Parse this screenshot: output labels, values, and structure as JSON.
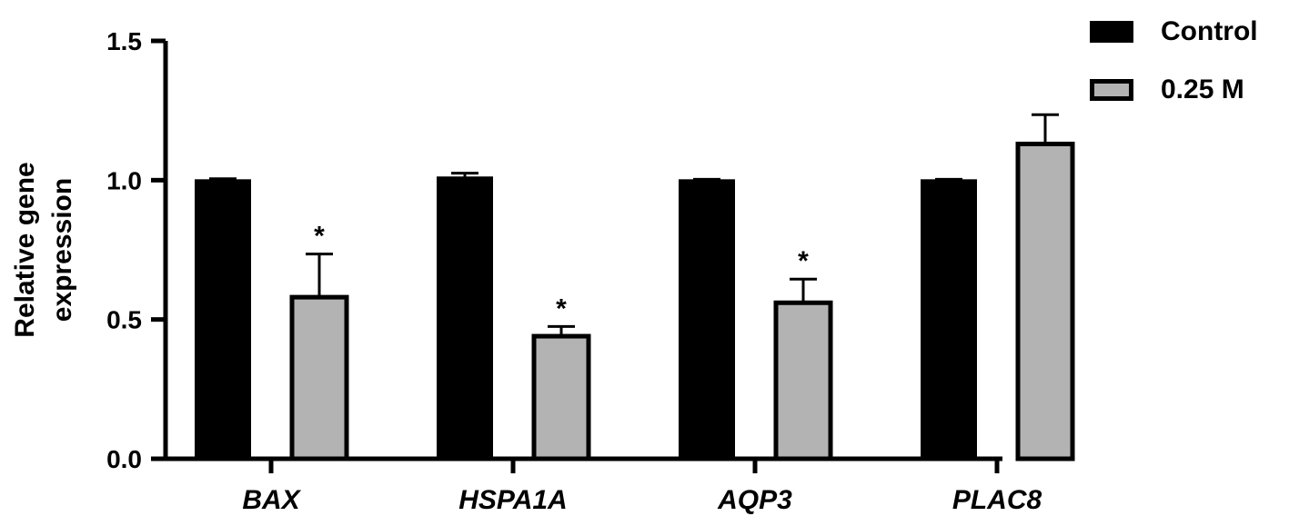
{
  "chart_data": {
    "type": "bar",
    "categories": [
      "BAX",
      "HSPA1A",
      "AQP3",
      "PLAC8"
    ],
    "series": [
      {
        "name": "Control",
        "color": "#000000",
        "values": [
          1.0,
          1.01,
          1.0,
          1.0
        ],
        "errors": [
          0.005,
          0.015,
          0.003,
          0.003
        ]
      },
      {
        "name": "0.25 M",
        "color": "#b3b3b3",
        "values": [
          0.58,
          0.44,
          0.56,
          1.13
        ],
        "errors": [
          0.155,
          0.035,
          0.085,
          0.105
        ]
      }
    ],
    "significance": [
      "*",
      "*",
      "*",
      ""
    ],
    "ylabel_lines": [
      "Relative gene",
      "expression"
    ],
    "yticks": [
      "0.0",
      "0.5",
      "1.0",
      "1.5"
    ],
    "ylim": [
      0,
      1.5
    ],
    "legend_position": "top-right"
  }
}
